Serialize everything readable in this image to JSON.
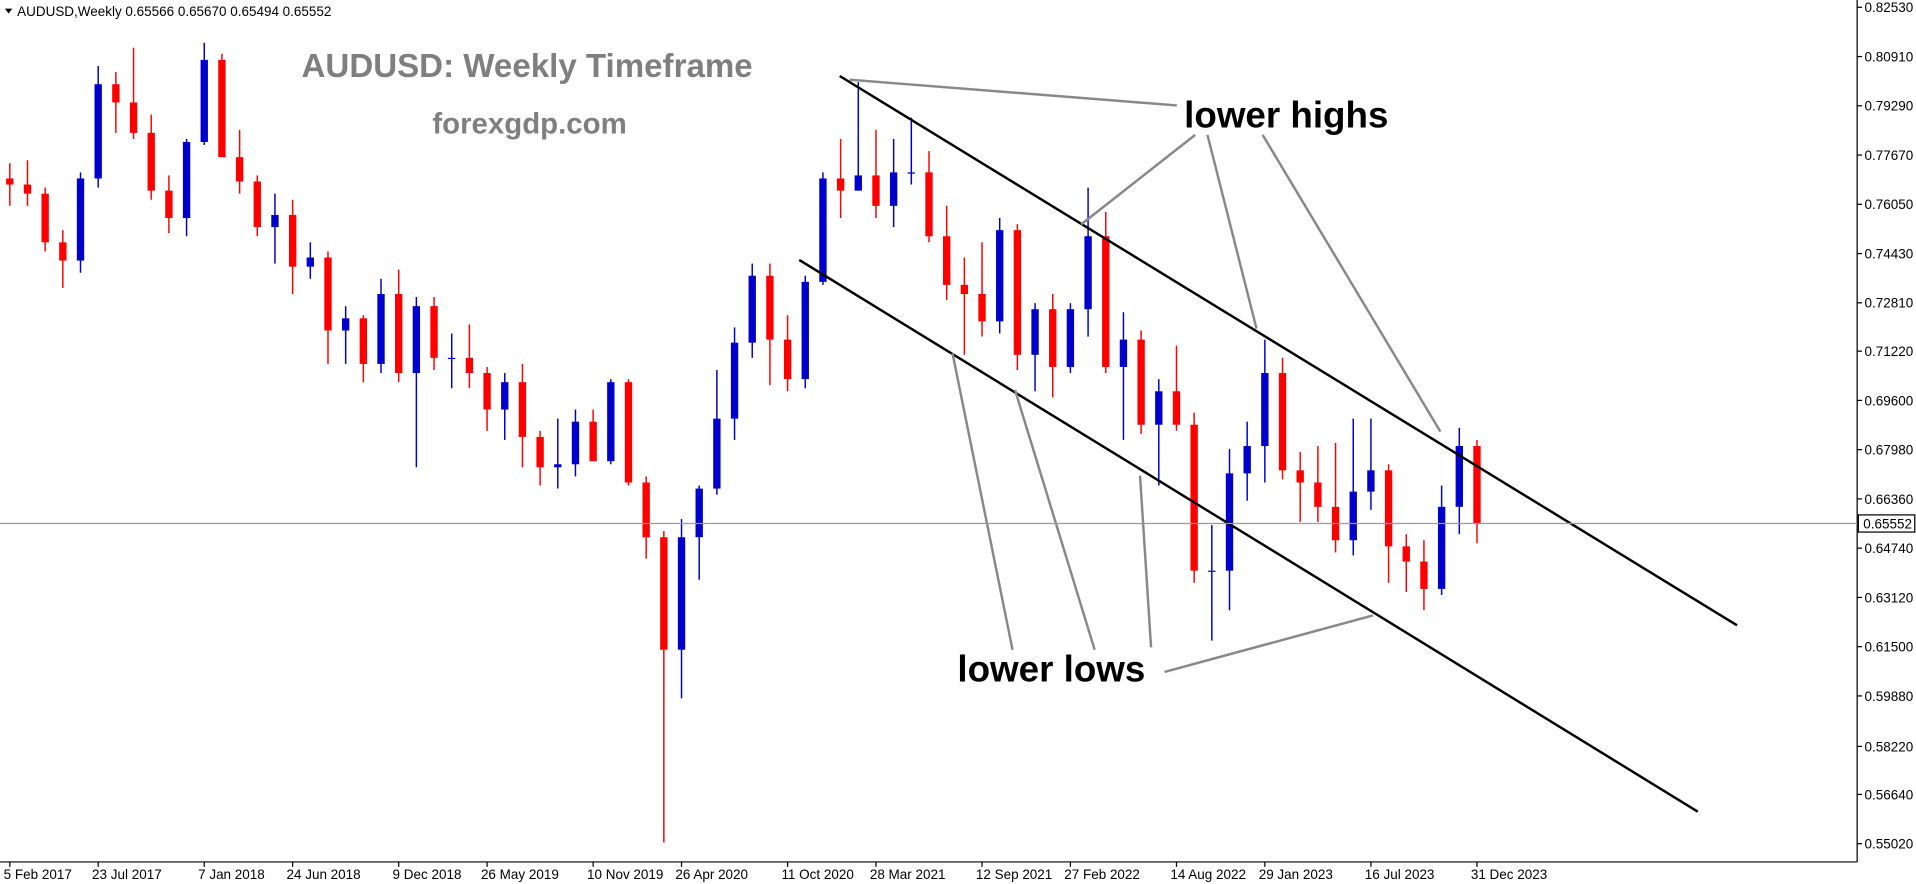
{
  "chart_data": {
    "type": "candlestick",
    "header": "AUDUSD,Weekly  0.65566 0.65670 0.65494 0.65552",
    "title": "AUDUSD: Weekly Timeframe",
    "subtitle": "forexgdp.com",
    "annotations": [
      "lower highs",
      "lower lows"
    ],
    "up_color": "#0000cc",
    "down_color": "#ff0000",
    "last_price": 0.65552,
    "categories": [
      "5 Feb 2017",
      null,
      null,
      null,
      null,
      "23 Jul 2017",
      null,
      null,
      null,
      null,
      null,
      "7 Jan 2018",
      null,
      null,
      null,
      null,
      "24 Jun 2018",
      null,
      null,
      null,
      null,
      null,
      "9 Dec 2018",
      null,
      null,
      null,
      null,
      "26 May 2019",
      null,
      null,
      null,
      null,
      null,
      "10 Nov 2019",
      null,
      null,
      null,
      null,
      "26 Apr 2020",
      null,
      null,
      null,
      null,
      null,
      "11 Oct 2020",
      null,
      null,
      null,
      null,
      "28 Mar 2021",
      null,
      null,
      null,
      null,
      null,
      "12 Sep 2021",
      null,
      null,
      null,
      null,
      "27 Feb 2022",
      null,
      null,
      null,
      null,
      null,
      "14 Aug 2022",
      null,
      null,
      null,
      null,
      "29 Jan 2023",
      null,
      null,
      null,
      null,
      null,
      "16 Jul 2023",
      null,
      null,
      null,
      null,
      null,
      "31 Dec 2023"
    ],
    "open": [
      0.769,
      0.767,
      0.764,
      0.748,
      0.742,
      0.769,
      0.8,
      0.794,
      0.784,
      0.765,
      0.756,
      0.781,
      0.808,
      0.776,
      0.768,
      0.753,
      0.757,
      0.74,
      0.743,
      0.719,
      0.723,
      0.708,
      0.731,
      0.705,
      0.727,
      0.71,
      0.71,
      0.705,
      0.693,
      0.702,
      0.684,
      0.674,
      0.675,
      0.689,
      0.676,
      0.702,
      0.669,
      0.651,
      0.614,
      0.651,
      0.667,
      0.69,
      0.715,
      0.737,
      0.716,
      0.703,
      0.735,
      0.769,
      0.765,
      0.77,
      0.76,
      0.771,
      0.771,
      0.75,
      0.734,
      0.731,
      0.722,
      0.752,
      0.711,
      0.726,
      0.707,
      0.726,
      0.75,
      0.707,
      0.716,
      0.688,
      0.699,
      0.688,
      0.64,
      0.64,
      0.672,
      0.681,
      0.705,
      0.673,
      0.669,
      0.661,
      0.65,
      0.666,
      0.673,
      0.648,
      0.643,
      0.634,
      0.661,
      0.681
    ],
    "high": [
      0.774,
      0.775,
      0.766,
      0.752,
      0.771,
      0.806,
      0.804,
      0.812,
      0.79,
      0.77,
      0.782,
      0.8136,
      0.81,
      0.785,
      0.77,
      0.764,
      0.762,
      0.748,
      0.745,
      0.727,
      0.724,
      0.736,
      0.739,
      0.73,
      0.73,
      0.718,
      0.721,
      0.707,
      0.705,
      0.708,
      0.686,
      0.69,
      0.693,
      0.693,
      0.703,
      0.703,
      0.671,
      0.653,
      0.657,
      0.668,
      0.706,
      0.72,
      0.741,
      0.741,
      0.724,
      0.737,
      0.771,
      0.782,
      0.8007,
      0.785,
      0.782,
      0.789,
      0.778,
      0.76,
      0.743,
      0.748,
      0.756,
      0.754,
      0.728,
      0.731,
      0.728,
      0.766,
      0.758,
      0.725,
      0.719,
      0.703,
      0.714,
      0.692,
      0.655,
      0.68,
      0.689,
      0.716,
      0.71,
      0.679,
      0.681,
      0.682,
      0.69,
      0.69,
      0.675,
      0.652,
      0.65,
      0.668,
      0.687,
      0.683
    ],
    "low": [
      0.76,
      0.76,
      0.745,
      0.733,
      0.738,
      0.766,
      0.784,
      0.782,
      0.762,
      0.751,
      0.75,
      0.78,
      0.776,
      0.764,
      0.75,
      0.741,
      0.731,
      0.736,
      0.708,
      0.708,
      0.702,
      0.705,
      0.702,
      0.674,
      0.706,
      0.7,
      0.7,
      0.686,
      0.683,
      0.674,
      0.668,
      0.667,
      0.671,
      0.676,
      0.675,
      0.668,
      0.644,
      0.5506,
      0.598,
      0.637,
      0.665,
      0.683,
      0.71,
      0.701,
      0.699,
      0.7,
      0.734,
      0.756,
      0.765,
      0.756,
      0.753,
      0.767,
      0.748,
      0.729,
      0.711,
      0.717,
      0.718,
      0.706,
      0.699,
      0.697,
      0.705,
      0.717,
      0.705,
      0.683,
      0.685,
      0.668,
      0.686,
      0.636,
      0.617,
      0.627,
      0.663,
      0.669,
      0.67,
      0.656,
      0.656,
      0.646,
      0.645,
      0.66,
      0.636,
      0.633,
      0.627,
      0.632,
      0.652,
      0.649
    ],
    "close": [
      0.767,
      0.764,
      0.748,
      0.742,
      0.769,
      0.8,
      0.794,
      0.784,
      0.765,
      0.756,
      0.781,
      0.808,
      0.776,
      0.768,
      0.753,
      0.757,
      0.74,
      0.743,
      0.719,
      0.723,
      0.708,
      0.731,
      0.705,
      0.727,
      0.71,
      0.71,
      0.705,
      0.693,
      0.702,
      0.684,
      0.674,
      0.675,
      0.689,
      0.676,
      0.702,
      0.669,
      0.651,
      0.614,
      0.651,
      0.667,
      0.69,
      0.715,
      0.737,
      0.716,
      0.703,
      0.735,
      0.769,
      0.765,
      0.77,
      0.76,
      0.771,
      0.771,
      0.75,
      0.734,
      0.731,
      0.722,
      0.752,
      0.711,
      0.726,
      0.707,
      0.726,
      0.75,
      0.707,
      0.716,
      0.688,
      0.699,
      0.688,
      0.64,
      0.64,
      0.672,
      0.681,
      0.705,
      0.673,
      0.669,
      0.661,
      0.65,
      0.666,
      0.673,
      0.648,
      0.643,
      0.634,
      0.661,
      0.681,
      0.6555
    ],
    "ylim": [
      0.5442,
      0.8277
    ],
    "yticks": [
      {
        "value": 0.8253,
        "label": "0.82530"
      },
      {
        "value": 0.8091,
        "label": "0.80910"
      },
      {
        "value": 0.7929,
        "label": "0.79290"
      },
      {
        "value": 0.7767,
        "label": "0.77670"
      },
      {
        "value": 0.7605,
        "label": "0.76050"
      },
      {
        "value": 0.7443,
        "label": "0.74430"
      },
      {
        "value": 0.7281,
        "label": "0.72810"
      },
      {
        "value": 0.7122,
        "label": "0.71220"
      },
      {
        "value": 0.696,
        "label": "0.69600"
      },
      {
        "value": 0.6798,
        "label": "0.67980"
      },
      {
        "value": 0.6636,
        "label": "0.66360"
      },
      {
        "value": 0.6474,
        "label": "0.64740"
      },
      {
        "value": 0.6312,
        "label": "0.63120"
      },
      {
        "value": 0.615,
        "label": "0.61500"
      },
      {
        "value": 0.5988,
        "label": "0.59880"
      },
      {
        "value": 0.5822,
        "label": "0.58220"
      },
      {
        "value": 0.5664,
        "label": "0.56640"
      },
      {
        "value": 0.5502,
        "label": "0.55020"
      }
    ]
  }
}
